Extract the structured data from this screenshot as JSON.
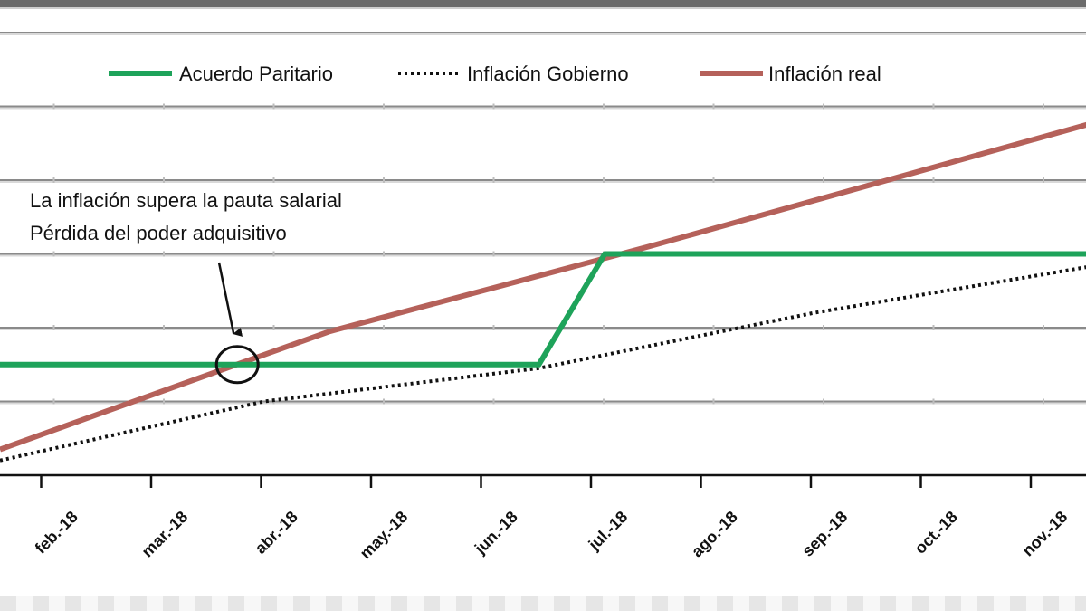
{
  "chart_data": {
    "type": "line",
    "categories": [
      "feb.-18",
      "mar.-18",
      "abr.-18",
      "may.-18",
      "jun.-18",
      "jul.-18",
      "ago.-18",
      "sep.-18",
      "oct.-18",
      "nov.-18"
    ],
    "x_range": [
      0,
      10
    ],
    "y_range": [
      0,
      6
    ],
    "grid": true,
    "legend_position": "top",
    "series": [
      {
        "name": "Acuerdo Paritario",
        "color": "#1ea35a",
        "style": "solid",
        "points": [
          [
            0,
            1.5
          ],
          [
            4.9,
            1.5
          ],
          [
            5.5,
            3.0
          ],
          [
            10,
            3.0
          ]
        ]
      },
      {
        "name": "Inflación Gobierno",
        "color": "#111111",
        "style": "dotted",
        "points": [
          [
            0,
            0.2
          ],
          [
            2.4,
            1.0
          ],
          [
            4.9,
            1.45
          ],
          [
            7.4,
            2.2
          ],
          [
            10,
            2.85
          ]
        ]
      },
      {
        "name": "Inflación real",
        "color": "#b5615a",
        "style": "solid",
        "points": [
          [
            0,
            0.35
          ],
          [
            2.15,
            1.5
          ],
          [
            3.0,
            1.95
          ],
          [
            5.9,
            3.1
          ],
          [
            10,
            4.8
          ]
        ]
      }
    ],
    "annotation": {
      "lines": [
        "La inflación supera la pauta salarial",
        "Pérdida del poder adquisitivo"
      ],
      "target": [
        2.15,
        1.5
      ]
    }
  }
}
